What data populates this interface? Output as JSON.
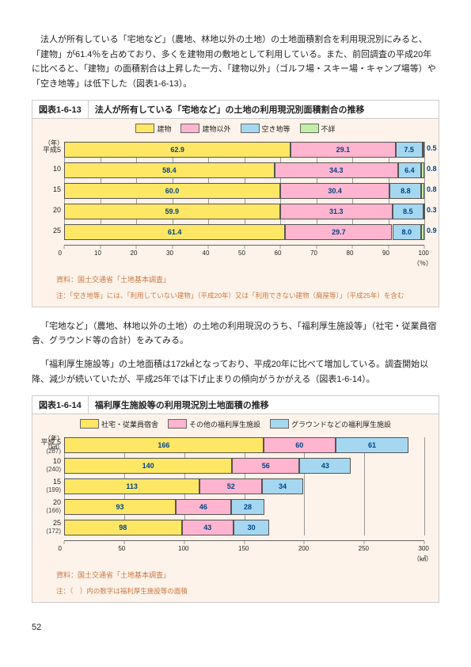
{
  "para1": "法人が所有している「宅地など」（農地、林地以外の土地）の土地面積割合を利用現況別にみると、「建物」が61.4％を占めており、多くを建物用の敷地として利用している。また、前回調査の平成20年に比べると、「建物」の面積割合は上昇した一方、「建物以外」（ゴルフ場・スキー場・キャンプ場等）や「空き地等」は低下した（図表1-6-13）。",
  "fig1": {
    "label": "図表1-6-13",
    "title": "法人が所有している「宅地など」の土地の利用現況別面積割合の推移",
    "y_unit": "（年）",
    "legend": [
      {
        "label": "建物",
        "color": "#ffe766"
      },
      {
        "label": "建物以外",
        "color": "#ffb5cf"
      },
      {
        "label": "空き地等",
        "color": "#a5d8f0"
      },
      {
        "label": "不詳",
        "color": "#c1f0a5"
      }
    ],
    "rows": [
      {
        "cat": "平成5",
        "segs": [
          62.9,
          29.1,
          7.5,
          0.5
        ]
      },
      {
        "cat": "10",
        "segs": [
          58.4,
          34.3,
          6.4,
          0.8
        ]
      },
      {
        "cat": "15",
        "segs": [
          60.0,
          30.4,
          8.8,
          0.8
        ]
      },
      {
        "cat": "20",
        "segs": [
          59.9,
          31.3,
          8.5,
          0.3
        ]
      },
      {
        "cat": "25",
        "segs": [
          61.4,
          29.7,
          8.0,
          0.9
        ]
      }
    ],
    "x_ticks": [
      0,
      10,
      20,
      30,
      40,
      50,
      60,
      70,
      80,
      90,
      100
    ],
    "x_unit": "（％）",
    "source": "資料：国土交通省「土地基本調査」",
    "note": "注：「空き地等」には、「利用していない建物」（平成20年）又は「利用できない建物（廃屋等）」（平成25年）を含む"
  },
  "para2": "「宅地など」（農地、林地以外の土地）の土地の利用現況のうち、「福利厚生施設等」（社宅・従業員宿舎、グラウンド等の合計）をみてみる。",
  "para3": "「福利厚生施設等」の土地面積は172㎢となっており、平成20年に比べて増加している。調査開始以降、減少が続いていたが、平成25年では下げ止まりの傾向がうかがえる（図表1-6-14）。",
  "fig2": {
    "label": "図表1-6-14",
    "title": "福利厚生施設等の利用現況別土地面積の推移",
    "y_unit": "（年）\n（㎢）",
    "legend": [
      {
        "label": "社宅・従業員宿舎",
        "color": "#ffe766"
      },
      {
        "label": "その他の福利厚生施設",
        "color": "#ffb5cf"
      },
      {
        "label": "グラウンドなどの福利厚生施設",
        "color": "#a5d8f0"
      }
    ],
    "rows": [
      {
        "cat": "平成 5",
        "sub": "(287)",
        "segs": [
          166,
          60,
          61
        ]
      },
      {
        "cat": "10",
        "sub": "(240)",
        "segs": [
          140,
          56,
          43
        ]
      },
      {
        "cat": "15",
        "sub": "(199)",
        "segs": [
          113,
          52,
          34
        ]
      },
      {
        "cat": "20",
        "sub": "(166)",
        "segs": [
          93,
          46,
          28
        ]
      },
      {
        "cat": "25",
        "sub": "(172)",
        "segs": [
          98,
          43,
          30
        ]
      }
    ],
    "x_max": 300,
    "x_ticks": [
      0,
      50,
      100,
      150,
      200,
      250,
      300
    ],
    "x_unit": "（㎢）",
    "source": "資料：国土交通省「土地基本調査」",
    "note": "注：（　）内の数字は福利厚生施設等の面積"
  },
  "page": "52"
}
